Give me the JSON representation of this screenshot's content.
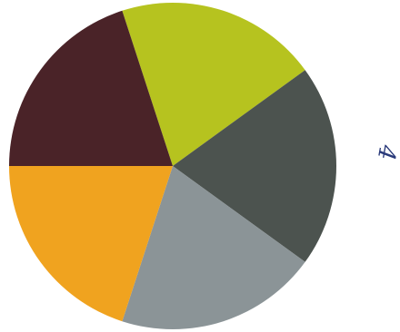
{
  "chart_data": {
    "type": "pie",
    "categories": [
      null,
      null,
      null,
      null,
      null
    ],
    "values": [
      20,
      20,
      20,
      20,
      20
    ],
    "colors": [
      "#b6c31f",
      "#4c534f",
      "#8b9497",
      "#f0a31f",
      "#4a2328"
    ],
    "annotations": [
      "4"
    ]
  }
}
